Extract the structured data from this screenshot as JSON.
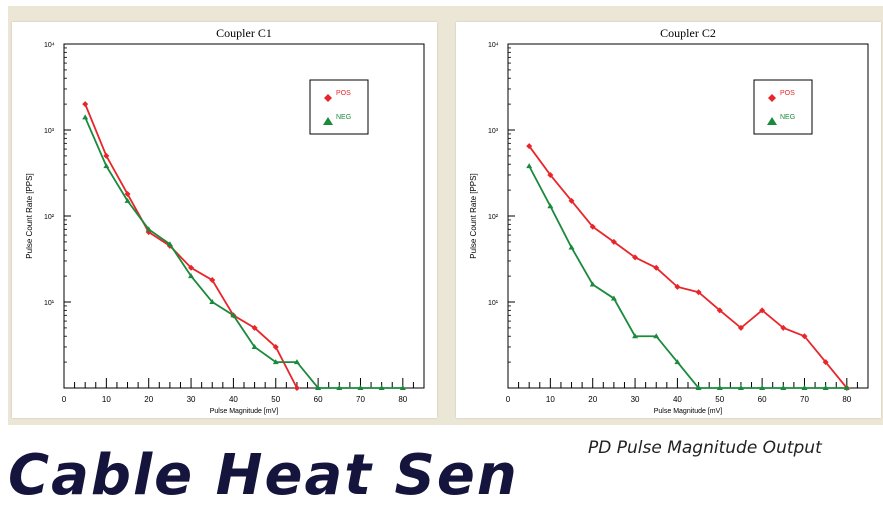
{
  "caption": "PD Pulse Magnitude Output",
  "big_text": "Cable   Heat   Sen",
  "chart_data": [
    {
      "type": "line",
      "title": "Coupler C1",
      "xlabel": "Pulse Magnitude [mV]",
      "ylabel": "Pulse Count Rate [PPS]",
      "xlim": [
        0,
        85
      ],
      "ylim": [
        1,
        10000
      ],
      "yscale": "log",
      "x_ticks": [
        "0",
        "10",
        "20",
        "30",
        "40",
        "50",
        "60",
        "70",
        "80"
      ],
      "y_ticks": [
        "10⁴",
        "10³",
        "10²",
        "10¹"
      ],
      "legend_position": "top-right",
      "grid": false,
      "series": [
        {
          "name": "POS",
          "color": "#e8262a",
          "marker": "diamond",
          "x": [
            5,
            10,
            15,
            20,
            25,
            30,
            35,
            40,
            45,
            50,
            55
          ],
          "y": [
            2000,
            500,
            180,
            65,
            45,
            25,
            18,
            7,
            5,
            3,
            1
          ]
        },
        {
          "name": "NEG",
          "color": "#1a8a3c",
          "marker": "triangle",
          "x": [
            5,
            10,
            15,
            20,
            25,
            30,
            35,
            40,
            45,
            50,
            55,
            60,
            65,
            70,
            75,
            80
          ],
          "y": [
            1400,
            380,
            150,
            70,
            47,
            20,
            10,
            7,
            3,
            2,
            2,
            1,
            1,
            1,
            1,
            1
          ]
        }
      ]
    },
    {
      "type": "line",
      "title": "Coupler C2",
      "xlabel": "Pulse Magnitude [mV]",
      "ylabel": "Pulse Count Rate [PPS]",
      "xlim": [
        0,
        85
      ],
      "ylim": [
        1,
        10000
      ],
      "yscale": "log",
      "x_ticks": [
        "0",
        "10",
        "20",
        "30",
        "40",
        "50",
        "60",
        "70",
        "80"
      ],
      "y_ticks": [
        "10⁴",
        "10³",
        "10²",
        "10¹"
      ],
      "legend_position": "top-right",
      "grid": false,
      "series": [
        {
          "name": "POS",
          "color": "#e8262a",
          "marker": "diamond",
          "x": [
            5,
            10,
            15,
            20,
            25,
            30,
            35,
            40,
            45,
            50,
            55,
            60,
            65,
            70,
            75,
            80
          ],
          "y": [
            650,
            300,
            150,
            75,
            50,
            33,
            25,
            15,
            13,
            8,
            5,
            8,
            5,
            4,
            2,
            1
          ]
        },
        {
          "name": "NEG",
          "color": "#1a8a3c",
          "marker": "triangle",
          "x": [
            5,
            10,
            15,
            20,
            25,
            30,
            35,
            40,
            45,
            50,
            55,
            60,
            65,
            70,
            75,
            80
          ],
          "y": [
            380,
            130,
            43,
            16,
            11,
            4,
            4,
            2,
            1,
            1,
            1,
            1,
            1,
            1,
            1,
            1
          ]
        }
      ]
    }
  ]
}
